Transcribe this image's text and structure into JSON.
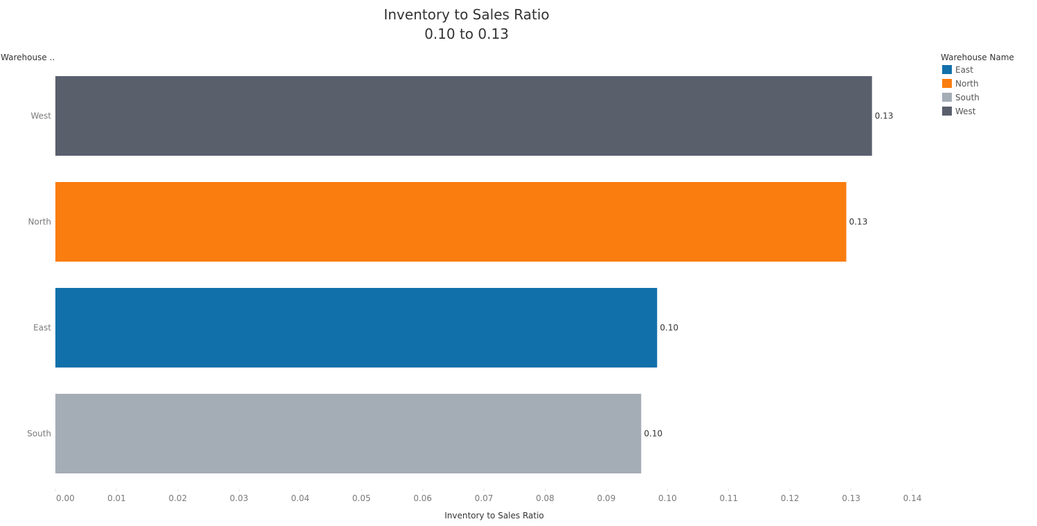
{
  "chart_data": {
    "type": "bar",
    "orientation": "horizontal",
    "title": "Inventory to Sales Ratio",
    "subtitle": "0.10 to 0.13",
    "row_header": "Warehouse ..",
    "xlabel": "Inventory to Sales Ratio",
    "xlim": [
      0.0,
      0.14
    ],
    "x_ticks": [
      "0.00",
      "0.01",
      "0.02",
      "0.03",
      "0.04",
      "0.05",
      "0.06",
      "0.07",
      "0.08",
      "0.09",
      "0.10",
      "0.11",
      "0.12",
      "0.13",
      "0.14"
    ],
    "grid": false,
    "categories": [
      "West",
      "North",
      "East",
      "South"
    ],
    "values": [
      0.1334,
      0.1292,
      0.0983,
      0.0957
    ],
    "data_labels": [
      "0.13",
      "0.13",
      "0.10",
      "0.10"
    ],
    "bar_colors": [
      "#5a5f6c",
      "#fa7d0f",
      "#1170aa",
      "#a4acb6"
    ],
    "legend": {
      "title": "Warehouse Name",
      "position": "top-right",
      "items": [
        {
          "label": "East",
          "color": "#1170aa"
        },
        {
          "label": "North",
          "color": "#fa7d0f"
        },
        {
          "label": "South",
          "color": "#a4acb6"
        },
        {
          "label": "West",
          "color": "#5a5f6c"
        }
      ]
    }
  }
}
